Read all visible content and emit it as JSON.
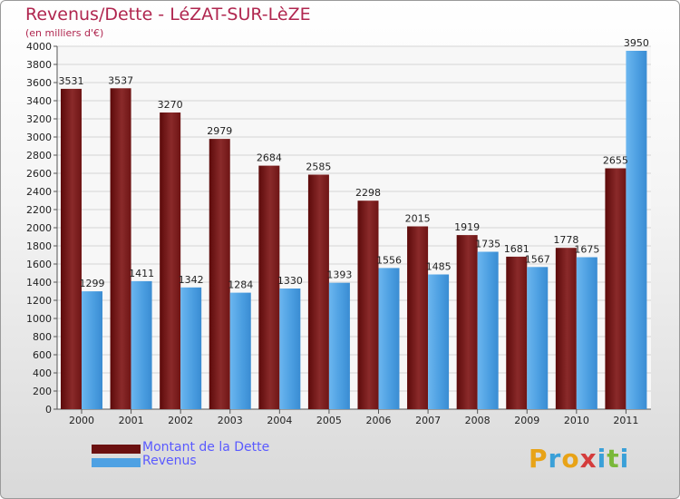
{
  "title": "Revenus/Dette - LéZAT-SUR-LèZE",
  "subtitle": "(en milliers d'€)",
  "colors": {
    "debt": "#7a1c1c",
    "revenue": "#4ea1e3",
    "title": "#b0264f",
    "legend_text": "#5a5aff"
  },
  "legend": [
    {
      "label": "Montant de la Dette",
      "color": "#6b1010"
    },
    {
      "label": "Revenus",
      "color": "#4ea1e3"
    }
  ],
  "logo_text": "Proxiti",
  "chart_data": {
    "type": "bar",
    "title": "Revenus/Dette - LéZAT-SUR-LèZE",
    "subtitle": "(en milliers d'€)",
    "categories": [
      "2000",
      "2001",
      "2002",
      "2003",
      "2004",
      "2005",
      "2006",
      "2007",
      "2008",
      "2009",
      "2010",
      "2011"
    ],
    "series": [
      {
        "name": "Montant de la Dette",
        "values": [
          3531,
          3537,
          3270,
          2979,
          2684,
          2585,
          2298,
          2015,
          1919,
          1681,
          1778,
          2655
        ]
      },
      {
        "name": "Revenus",
        "values": [
          1299,
          1411,
          1342,
          1284,
          1330,
          1393,
          1556,
          1485,
          1735,
          1567,
          1675,
          3950
        ]
      }
    ],
    "ylim": [
      0,
      4000
    ],
    "yticks": [
      0,
      200,
      400,
      600,
      800,
      1000,
      1200,
      1400,
      1600,
      1800,
      2000,
      2200,
      2400,
      2600,
      2800,
      3000,
      3200,
      3400,
      3600,
      3800,
      4000
    ],
    "grid": true,
    "legend_position": "bottom-left"
  }
}
